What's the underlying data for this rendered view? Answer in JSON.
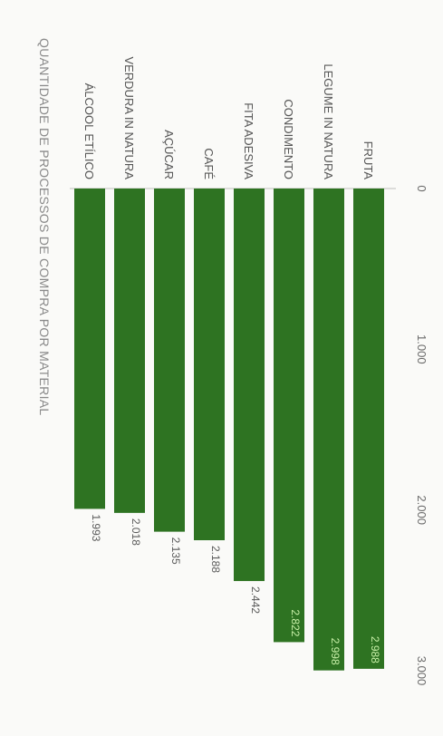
{
  "chart_data": {
    "type": "bar",
    "orientation": "horizontal",
    "title": "QUANTIDADE DE PROCESSOS DE COMPRA POR MATERIAL",
    "xlabel": "",
    "ylabel": "",
    "categories": [
      "FRUTA",
      "LEGUME IN NATURA",
      "CONDIMENTO",
      "FITA ADESIVA",
      "CAFÉ",
      "AÇÚCAR",
      "VERDURA IN NATURA",
      "ÁLCOOL ETÍLICO"
    ],
    "values": [
      2988,
      2998,
      2822,
      2442,
      2188,
      2135,
      2018,
      1993
    ],
    "value_labels": [
      "2.988",
      "2.998",
      "2.822",
      "2.442",
      "2.188",
      "2.135",
      "2.018",
      "1.993"
    ],
    "ticks": [
      0,
      1000,
      2000,
      3000
    ],
    "tick_labels": [
      "0",
      "1.000",
      "2.000",
      "3.000"
    ],
    "xlim": [
      0,
      3000
    ],
    "grid": false,
    "legend": "none",
    "bar_color": "#2e7322",
    "inside_label_color": "#c8f0a8",
    "outside_label_color": "#5a5a5a"
  }
}
